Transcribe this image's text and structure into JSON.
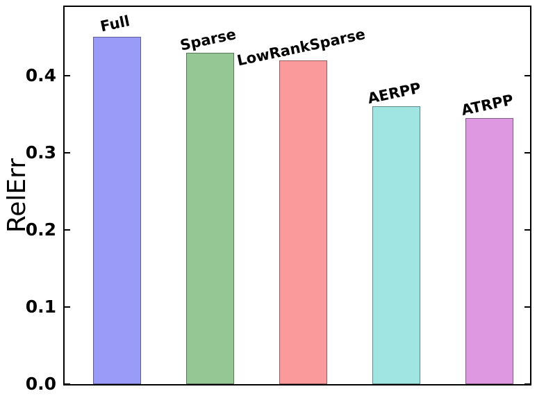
{
  "chart_data": {
    "type": "bar",
    "title": "",
    "xlabel": "",
    "ylabel": "RelErr",
    "categories": [
      "Full",
      "Sparse",
      "LowRankSparse",
      "AERPP",
      "ATRPP"
    ],
    "values": [
      0.45,
      0.43,
      0.42,
      0.36,
      0.345
    ],
    "bar_colors": [
      "#9a9af8",
      "#94c794",
      "#fa9a9a",
      "#a0e5e2",
      "#de98e2"
    ],
    "bar_edge_color": "rgba(20,20,20,0.45)",
    "yticks": [
      0.0,
      0.1,
      0.2,
      0.3,
      0.4
    ],
    "ytick_labels": [
      "0.0",
      "0.1",
      "0.2",
      "0.3",
      "0.4"
    ],
    "ylim": [
      0,
      0.489
    ],
    "xlim": [
      -0.56,
      4.44
    ],
    "bar_width_units": 0.515,
    "bar_label_rotation_deg": 12,
    "grid": false,
    "legend": null,
    "tick_direction": "in",
    "axis_color": "#000000",
    "background_color": "#ffffff"
  }
}
